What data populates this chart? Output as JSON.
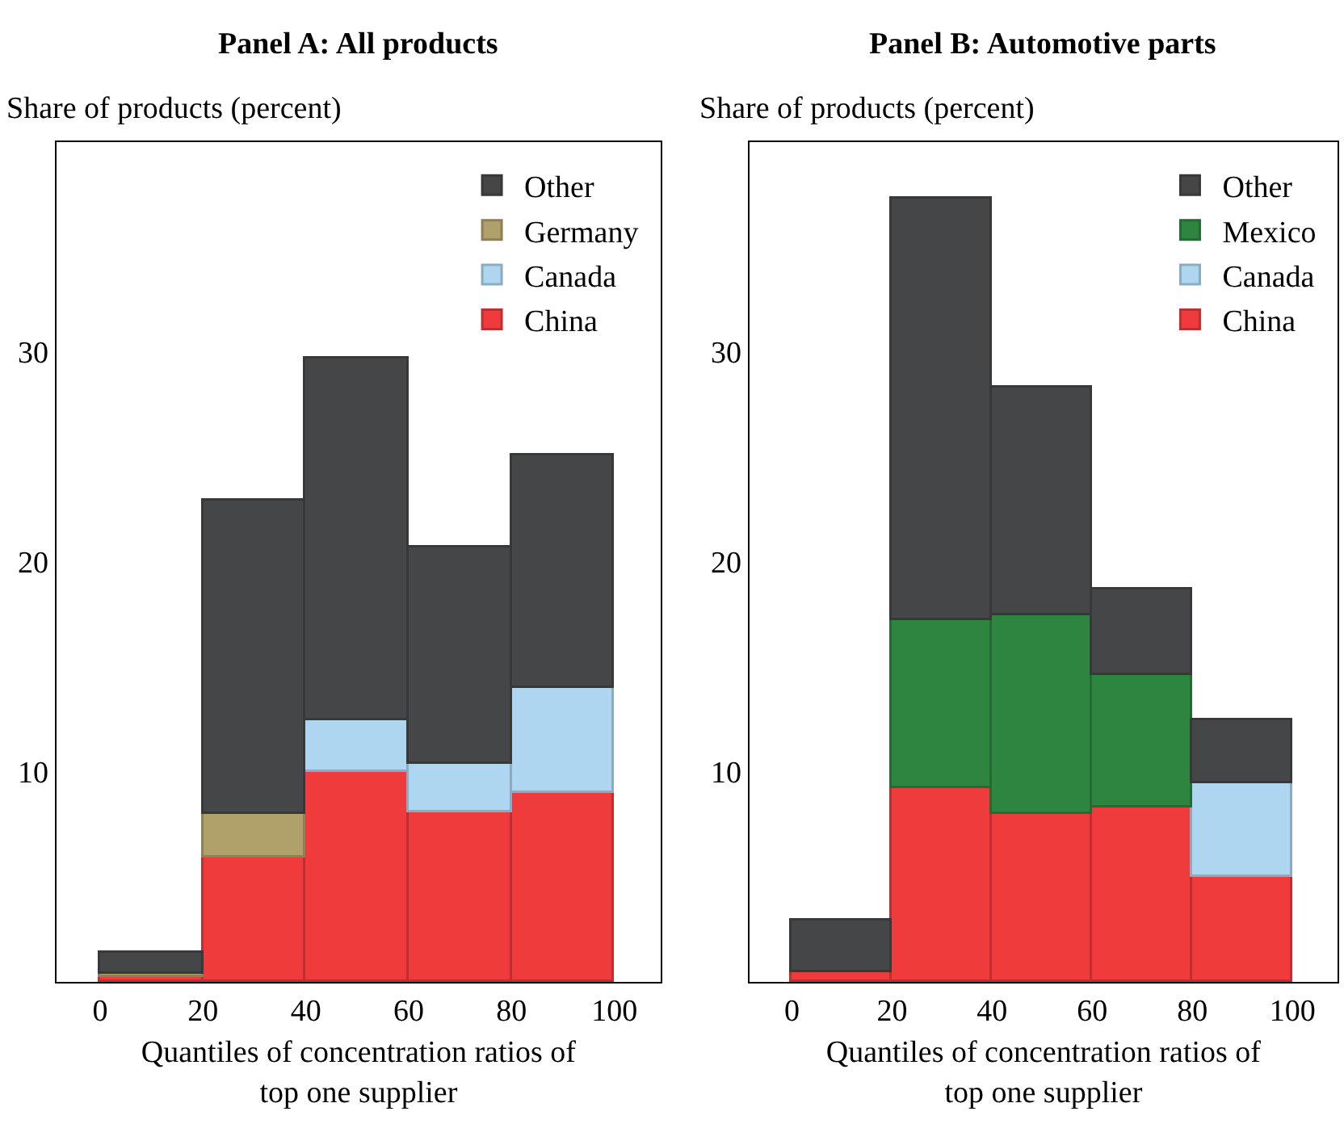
{
  "chart_data": [
    {
      "type": "bar",
      "title": "Panel A: All products",
      "ylabel": "Share of products (percent)",
      "xlabel": "Quantiles of concentration ratios of\ntop one supplier",
      "x": [
        10,
        30,
        50,
        70,
        90
      ],
      "stacked": true,
      "series": [
        {
          "name": "China",
          "color": "#ef3b3b",
          "values": [
            0.2,
            5.9,
            10.0,
            8.1,
            9.0
          ]
        },
        {
          "name": "Canada",
          "color": "#aed6f1",
          "values": [
            0,
            0,
            2.5,
            2.3,
            5.0
          ]
        },
        {
          "name": "Germany",
          "color": "#b0a06a",
          "values": [
            0.2,
            2.1,
            0,
            0,
            0
          ]
        },
        {
          "name": "Other",
          "color": "#454648",
          "values": [
            1.0,
            14.9,
            17.2,
            10.3,
            11.1
          ]
        }
      ],
      "xlim": [
        -8.5,
        109
      ],
      "xticks": [
        0,
        20,
        40,
        60,
        80,
        100
      ],
      "ylim": [
        0,
        40
      ],
      "yticks": [
        10,
        20,
        30
      ],
      "legend": "top right"
    },
    {
      "type": "bar",
      "title": "Panel B: Automotive parts",
      "ylabel": "Share of products (percent)",
      "xlabel": "Quantiles of concentration ratios of\ntop one supplier",
      "x": [
        10,
        30,
        50,
        70,
        90
      ],
      "stacked": true,
      "series": [
        {
          "name": "China",
          "color": "#ef3b3b",
          "values": [
            0.5,
            9.2,
            8.0,
            8.3,
            5.0
          ]
        },
        {
          "name": "Canada",
          "color": "#aed6f1",
          "values": [
            0,
            0,
            0,
            0,
            4.5
          ]
        },
        {
          "name": "Mexico",
          "color": "#2e8540",
          "values": [
            0,
            8.0,
            9.5,
            6.3,
            0
          ]
        },
        {
          "name": "Other",
          "color": "#454648",
          "values": [
            2.4,
            20.1,
            10.8,
            4.1,
            3.0
          ]
        }
      ],
      "xlim": [
        -8.5,
        109
      ],
      "xticks": [
        0,
        20,
        40,
        60,
        80,
        100
      ],
      "ylim": [
        0,
        40
      ],
      "yticks": [
        10,
        20,
        30
      ],
      "legend": "top right"
    }
  ]
}
